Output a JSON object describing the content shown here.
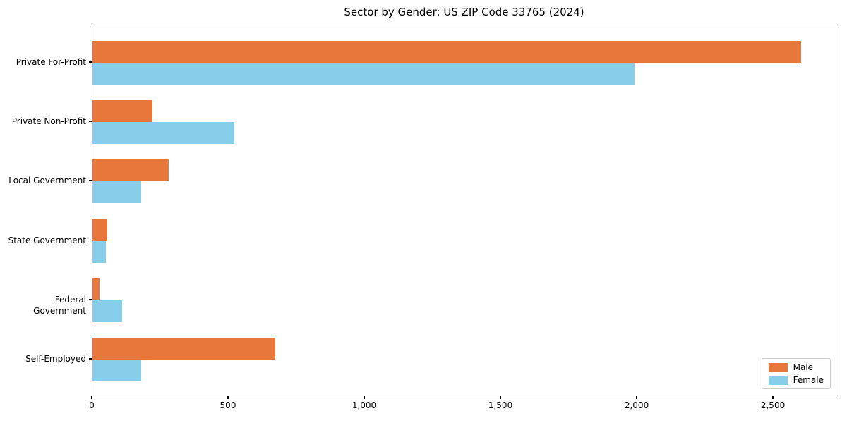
{
  "chart_data": {
    "type": "bar",
    "orientation": "horizontal",
    "title": "Sector by Gender: US ZIP Code 33765 (2024)",
    "categories": [
      "Private For-Profit",
      "Private Non-Profit",
      "Local Government",
      "State Government",
      "Federal Government",
      "Self-Employed"
    ],
    "series": [
      {
        "name": "Male",
        "color": "#E8773C",
        "values": [
          2600,
          220,
          280,
          55,
          25,
          670
        ]
      },
      {
        "name": "Female",
        "color": "#87CEEB",
        "values": [
          1990,
          520,
          180,
          48,
          110,
          180
        ]
      }
    ],
    "xlabel": "",
    "ylabel": "",
    "xlim": [
      0,
      2733
    ],
    "xticks": [
      0,
      500,
      1000,
      1500,
      2000,
      2500
    ],
    "xtick_labels": [
      "0",
      "500",
      "1,000",
      "1,500",
      "2,000",
      "2,500"
    ],
    "grid": false,
    "legend": {
      "position": "lower-right",
      "entries": [
        "Male",
        "Female"
      ]
    }
  }
}
